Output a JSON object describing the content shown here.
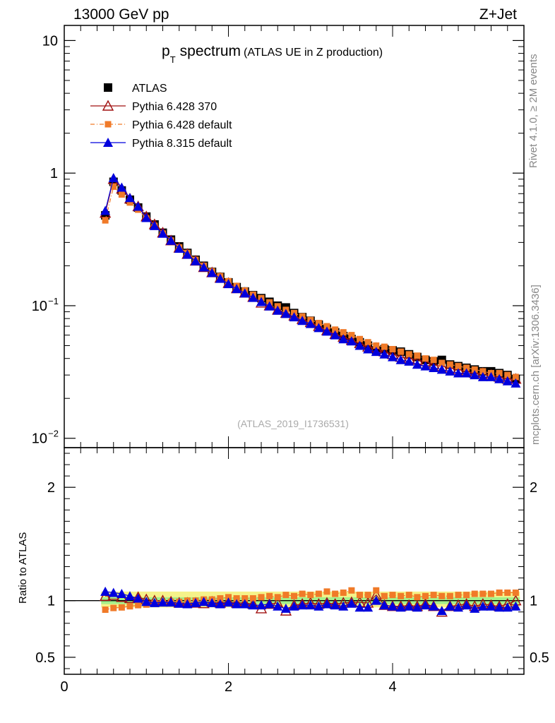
{
  "header": {
    "energy_label": "13000 GeV pp",
    "process_label": "Z+Jet"
  },
  "side_labels": {
    "rivet": "Rivet 4.1.0, ≥ 2M events",
    "mcplots": "mcplots.cern.ch [arXiv:1306.3436]"
  },
  "chart_data": [
    {
      "type": "scatter",
      "panel": "main",
      "title_main": "p",
      "title_sub": "T",
      "title_word": "spectrum",
      "subtitle": "(ATLAS UE in Z production)",
      "watermark": "(ATLAS_2019_I1736531)",
      "xlabel": "",
      "ylabel": "",
      "yscale": "log",
      "xlim": [
        0,
        5.6
      ],
      "ylim": [
        0.0085,
        13
      ],
      "y_ticks": [
        {
          "value": 10,
          "label": "10",
          "sup": ""
        },
        {
          "value": 1,
          "label": "1",
          "sup": ""
        },
        {
          "value": 0.1,
          "label": "10",
          "sup": "−1"
        },
        {
          "value": 0.01,
          "label": "10",
          "sup": "−2"
        }
      ],
      "x": [
        0.5,
        0.6,
        0.7,
        0.8,
        0.9,
        1.0,
        1.1,
        1.2,
        1.3,
        1.4,
        1.5,
        1.6,
        1.7,
        1.8,
        1.9,
        2.0,
        2.1,
        2.2,
        2.3,
        2.4,
        2.5,
        2.6,
        2.7,
        2.8,
        2.9,
        3.0,
        3.1,
        3.2,
        3.3,
        3.4,
        3.5,
        3.6,
        3.7,
        3.8,
        3.9,
        4.0,
        4.1,
        4.2,
        4.3,
        4.4,
        4.5,
        4.6,
        4.7,
        4.8,
        4.9,
        5.0,
        5.1,
        5.2,
        5.3,
        5.4,
        5.5
      ],
      "series": [
        {
          "name": "ATLAS",
          "marker": "filled-square",
          "color": "#000000",
          "line": "none",
          "values": [
            0.48,
            0.86,
            0.74,
            0.63,
            0.55,
            0.47,
            0.41,
            0.355,
            0.315,
            0.28,
            0.25,
            0.222,
            0.2,
            0.18,
            0.165,
            0.15,
            0.138,
            0.128,
            0.12,
            0.114,
            0.107,
            0.1,
            0.097,
            0.088,
            0.082,
            0.077,
            0.072,
            0.067,
            0.063,
            0.059,
            0.056,
            0.053,
            0.05,
            0.046,
            0.047,
            0.046,
            0.045,
            0.043,
            0.041,
            0.039,
            0.038,
            0.039,
            0.036,
            0.035,
            0.034,
            0.033,
            0.032,
            0.032,
            0.031,
            0.03,
            0.028
          ]
        },
        {
          "name": "Pythia 6.428 370",
          "marker": "open-triangle",
          "color": "#a01010",
          "line": "solid",
          "values": [
            0.5,
            0.9,
            0.76,
            0.64,
            0.56,
            0.47,
            0.41,
            0.355,
            0.31,
            0.273,
            0.245,
            0.218,
            0.195,
            0.178,
            0.162,
            0.148,
            0.135,
            0.125,
            0.116,
            0.105,
            0.1,
            0.093,
            0.088,
            0.084,
            0.079,
            0.075,
            0.07,
            0.065,
            0.061,
            0.058,
            0.055,
            0.052,
            0.049,
            0.048,
            0.045,
            0.043,
            0.041,
            0.04,
            0.039,
            0.038,
            0.036,
            0.035,
            0.034,
            0.033,
            0.032,
            0.031,
            0.031,
            0.03,
            0.029,
            0.028,
            0.028
          ]
        },
        {
          "name": "Pythia 6.428 default",
          "marker": "filled-small-square",
          "color": "#f07a28",
          "line": "dash-dot",
          "values": [
            0.44,
            0.79,
            0.69,
            0.6,
            0.53,
            0.455,
            0.4,
            0.35,
            0.31,
            0.275,
            0.25,
            0.222,
            0.2,
            0.182,
            0.167,
            0.153,
            0.141,
            0.13,
            0.121,
            0.114,
            0.106,
            0.099,
            0.093,
            0.088,
            0.083,
            0.078,
            0.074,
            0.07,
            0.066,
            0.063,
            0.06,
            0.056,
            0.053,
            0.05,
            0.049,
            0.047,
            0.045,
            0.043,
            0.042,
            0.04,
            0.039,
            0.037,
            0.036,
            0.035,
            0.034,
            0.033,
            0.032,
            0.031,
            0.031,
            0.03,
            0.029
          ]
        },
        {
          "name": "Pythia 8.315 default",
          "marker": "filled-triangle",
          "color": "#0000dd",
          "line": "solid",
          "values": [
            0.52,
            0.92,
            0.78,
            0.65,
            0.56,
            0.46,
            0.4,
            0.35,
            0.31,
            0.27,
            0.243,
            0.217,
            0.195,
            0.177,
            0.16,
            0.146,
            0.134,
            0.124,
            0.115,
            0.107,
            0.099,
            0.092,
            0.087,
            0.082,
            0.077,
            0.073,
            0.068,
            0.064,
            0.06,
            0.056,
            0.054,
            0.05,
            0.047,
            0.045,
            0.043,
            0.041,
            0.039,
            0.038,
            0.036,
            0.035,
            0.034,
            0.033,
            0.032,
            0.031,
            0.031,
            0.03,
            0.029,
            0.029,
            0.028,
            0.027,
            0.026
          ]
        }
      ]
    },
    {
      "type": "scatter",
      "panel": "ratio",
      "ylabel": "Ratio to ATLAS",
      "xlim": [
        0,
        5.6
      ],
      "ylim": [
        0.35,
        2.35
      ],
      "y_ticks": [
        {
          "value": 2,
          "label": "2"
        },
        {
          "value": 1,
          "label": "1"
        },
        {
          "value": 0.5,
          "label": "0.5"
        }
      ],
      "x_ticks": [
        {
          "value": 0,
          "label": "0"
        },
        {
          "value": 2,
          "label": "2"
        },
        {
          "value": 4,
          "label": "4"
        }
      ],
      "band_inner": {
        "color": "#a4f08c",
        "lo": 0.97,
        "hi": 1.03
      },
      "band_outer": {
        "color": "#f5f28a",
        "lo": 0.94,
        "hi": 1.08
      },
      "series": [
        {
          "name": "Pythia 6.428 370",
          "values": [
            1.04,
            1.05,
            1.03,
            1.02,
            1.03,
            1.01,
            1.0,
            1.0,
            0.99,
            0.98,
            0.98,
            0.98,
            0.975,
            0.99,
            0.98,
            0.99,
            0.98,
            0.98,
            0.97,
            0.93,
            0.97,
            0.98,
            0.91,
            0.96,
            0.97,
            0.98,
            0.97,
            0.98,
            0.97,
            0.98,
            0.985,
            0.985,
            0.98,
            1.05,
            0.96,
            0.95,
            0.95,
            0.96,
            0.95,
            0.97,
            0.95,
            0.9,
            0.95,
            0.96,
            0.97,
            0.95,
            0.97,
            0.96,
            0.95,
            0.97,
            1.0
          ]
        },
        {
          "name": "Pythia 6.428 default",
          "values": [
            0.92,
            0.935,
            0.94,
            0.95,
            0.96,
            0.965,
            0.975,
            0.98,
            0.99,
            0.99,
            1.0,
            1.0,
            1.01,
            1.01,
            1.02,
            1.03,
            1.02,
            1.02,
            1.02,
            1.03,
            1.04,
            1.03,
            1.05,
            1.04,
            1.06,
            1.05,
            1.06,
            1.08,
            1.06,
            1.07,
            1.09,
            1.05,
            1.05,
            1.09,
            1.04,
            1.05,
            1.04,
            1.05,
            1.03,
            1.04,
            1.05,
            1.04,
            1.04,
            1.05,
            1.05,
            1.06,
            1.06,
            1.06,
            1.07,
            1.07,
            1.07
          ]
        },
        {
          "name": "Pythia 8.315 default",
          "values": [
            1.08,
            1.07,
            1.06,
            1.04,
            1.02,
            0.99,
            0.98,
            0.985,
            0.985,
            0.975,
            0.97,
            0.98,
            0.99,
            0.98,
            0.97,
            0.985,
            0.97,
            0.97,
            0.96,
            0.96,
            0.97,
            0.95,
            0.93,
            0.95,
            0.96,
            0.96,
            0.95,
            0.97,
            0.96,
            0.95,
            0.975,
            0.94,
            0.94,
            1.0,
            0.96,
            0.95,
            0.94,
            0.95,
            0.94,
            0.96,
            0.95,
            0.91,
            0.95,
            0.94,
            0.96,
            0.93,
            0.95,
            0.95,
            0.94,
            0.94,
            0.95
          ]
        }
      ]
    }
  ]
}
